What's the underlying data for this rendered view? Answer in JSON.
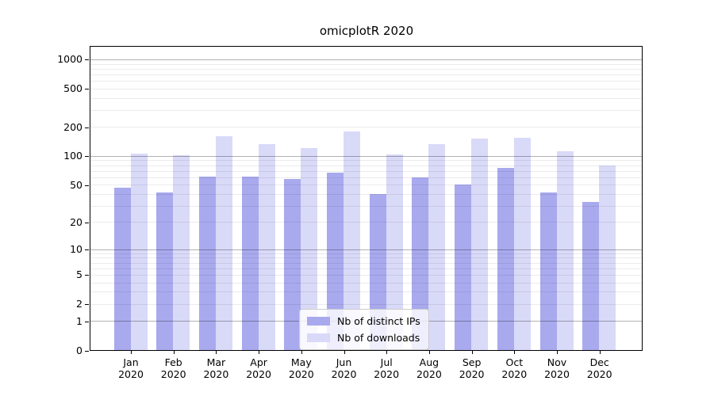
{
  "title": "omicplotR 2020",
  "colors": {
    "ips_bar": "#a9a9ee",
    "downloads_bar": "#d9d9f8",
    "grid_major": "rgba(0,0,0,0.30)",
    "grid_minor": "rgba(0,0,0,0.08)",
    "axis": "#000000",
    "legend_border": "#cccccc",
    "text": "#000000"
  },
  "chart_data": {
    "type": "bar",
    "title": "omicplotR 2020",
    "categories": [
      "Jan 2020",
      "Feb 2020",
      "Mar 2020",
      "Apr 2020",
      "May 2020",
      "Jun 2020",
      "Jul 2020",
      "Aug 2020",
      "Sep 2020",
      "Oct 2020",
      "Nov 2020",
      "Dec 2020"
    ],
    "series": [
      {
        "name": "Nb of distinct IPs",
        "color": "#a9a9ee",
        "values": [
          46,
          41,
          61,
          61,
          57,
          67,
          40,
          60,
          50,
          75,
          41,
          33
        ]
      },
      {
        "name": "Nb of downloads",
        "color": "#d9d9f8",
        "values": [
          106,
          102,
          160,
          132,
          121,
          178,
          103,
          133,
          150,
          155,
          111,
          80
        ]
      }
    ],
    "xlabel": "",
    "ylabel": "",
    "yscale": "log1p",
    "ylim": [
      0,
      1350
    ],
    "yticks": [
      0,
      1,
      2,
      5,
      10,
      20,
      50,
      100,
      200,
      500,
      1000
    ],
    "grid": "horizontal",
    "legend_position": "inside-bottom-center"
  }
}
